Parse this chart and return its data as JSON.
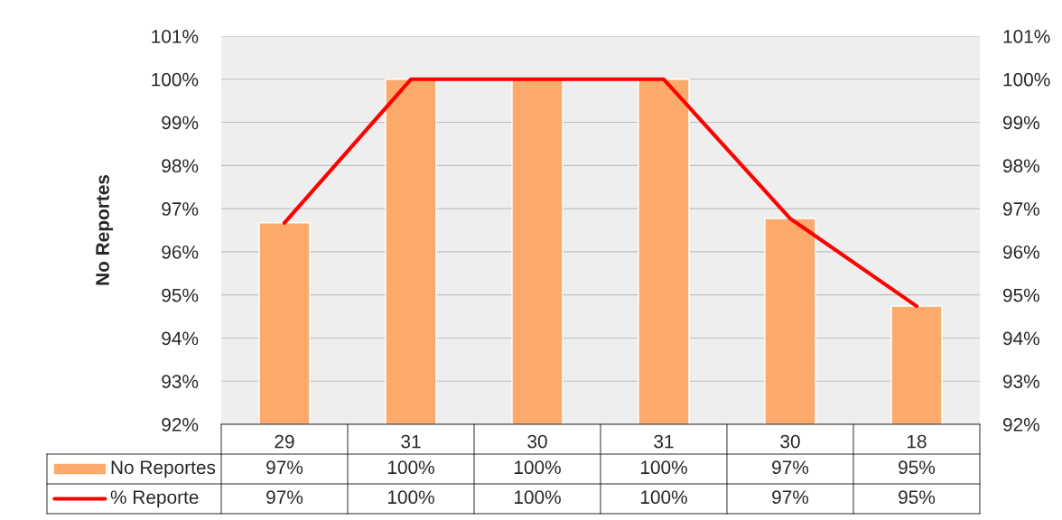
{
  "chart_data": {
    "type": "bar",
    "ylabel": "No Reportes",
    "categories": [
      "29",
      "31",
      "30",
      "31",
      "30",
      "18"
    ],
    "series": [
      {
        "name": "No Reportes",
        "color": "#fbaa6c",
        "values": [
          96.67,
          100,
          100,
          100,
          96.77,
          94.74
        ],
        "value_labels": [
          "97%",
          "100%",
          "100%",
          "100%",
          "97%",
          "95%"
        ]
      },
      {
        "name": "% Reporte",
        "type": "line",
        "axis": "y2",
        "color": "#ff0000",
        "values": [
          96.67,
          100,
          100,
          100,
          96.77,
          94.74
        ],
        "value_labels": [
          "97%",
          "100%",
          "100%",
          "100%",
          "97%",
          "95%"
        ]
      }
    ],
    "ylim": [
      92,
      101
    ],
    "yticks": [
      {
        "value": 92,
        "label": "92%"
      },
      {
        "value": 93,
        "label": "93%"
      },
      {
        "value": 94,
        "label": "94%"
      },
      {
        "value": 95,
        "label": "95%"
      },
      {
        "value": 96,
        "label": "96%"
      },
      {
        "value": 97,
        "label": "97%"
      },
      {
        "value": 98,
        "label": "98%"
      },
      {
        "value": 99,
        "label": "99%"
      },
      {
        "value": 100,
        "label": "100%"
      },
      {
        "value": 101,
        "label": "101%"
      }
    ],
    "y2lim": [
      92,
      101
    ],
    "y2ticks": [
      {
        "value": 92,
        "label": "92%"
      },
      {
        "value": 93,
        "label": "93%"
      },
      {
        "value": 94,
        "label": "94%"
      },
      {
        "value": 95,
        "label": "95%"
      },
      {
        "value": 96,
        "label": "96%"
      },
      {
        "value": 97,
        "label": "97%"
      },
      {
        "value": 98,
        "label": "98%"
      },
      {
        "value": 99,
        "label": "99%"
      },
      {
        "value": 100,
        "label": "100%"
      },
      {
        "value": 101,
        "label": "101%"
      }
    ],
    "grid": "y",
    "legend": "bottom",
    "marker": "none",
    "line_style": "solid"
  }
}
